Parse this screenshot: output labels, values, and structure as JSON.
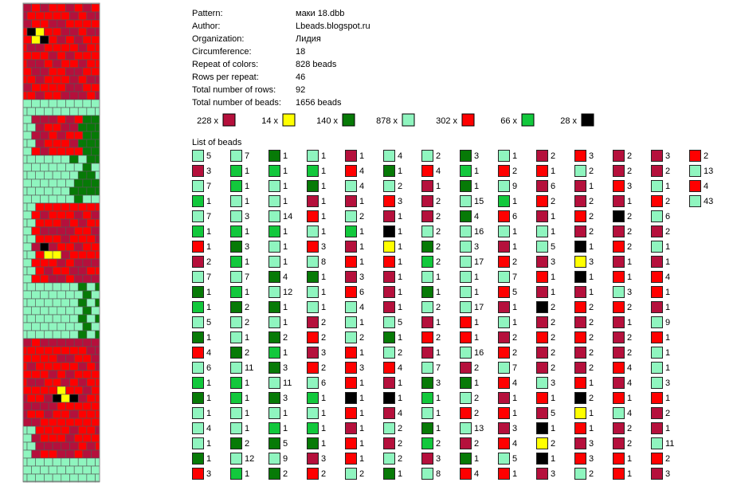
{
  "info": {
    "rows": [
      {
        "label": "Pattern:",
        "value": "маки 18.dbb"
      },
      {
        "label": "Author:",
        "value": "Lbeads.blogspot.ru"
      },
      {
        "label": "Organization:",
        "value": "Лидия"
      },
      {
        "label": "Circumference:",
        "value": "18"
      },
      {
        "label": "Repeat of colors:",
        "value": "828 beads"
      },
      {
        "label": "Rows per repeat:",
        "value": "46"
      },
      {
        "label": "Total number of rows:",
        "value": "92"
      },
      {
        "label": "Total number of beads:",
        "value": "1656 beads"
      }
    ]
  },
  "palette": {
    "D": "#b5103c",
    "R": "#ff0000",
    "G": "#077a07",
    "g": "#12c83c",
    "L": "#8ff5bf",
    "Y": "#ffff00",
    "K": "#000000"
  },
  "summary": [
    {
      "label": "228 x",
      "color": "D"
    },
    {
      "label": "14 x",
      "color": "Y"
    },
    {
      "label": "140 x",
      "color": "G"
    },
    {
      "label": "878 x",
      "color": "L"
    },
    {
      "label": "302 x",
      "color": "R"
    },
    {
      "label": "66 x",
      "color": "g"
    },
    {
      "label": "28 x",
      "color": "K"
    }
  ],
  "list": {
    "title": "List of beads",
    "columns": [
      {
        "colors": "LDLgLgRDLGgLGRLgGLLLGR",
        "counts": [
          5,
          3,
          7,
          1,
          7,
          1,
          1,
          2,
          7,
          1,
          1,
          5,
          1,
          4,
          6,
          1,
          1,
          1,
          4,
          1,
          1,
          3
        ]
      },
      {
        "colors": "LggLLgGgLgGLLGLggLLGLg",
        "counts": [
          7,
          1,
          1,
          1,
          3,
          1,
          3,
          1,
          7,
          1,
          2,
          2,
          1,
          2,
          11,
          1,
          1,
          1,
          1,
          2,
          12,
          1
        ]
      },
      {
        "colors": "GgLLLgLLGLGLGgGLGLgGLG",
        "counts": [
          1,
          1,
          1,
          1,
          14,
          1,
          1,
          1,
          4,
          12,
          1,
          1,
          2,
          1,
          3,
          11,
          3,
          1,
          1,
          5,
          9,
          2
        ]
      },
      {
        "colors": "LgGDRLRLGLLDRDRLgLgGDR",
        "counts": [
          1,
          1,
          1,
          1,
          1,
          1,
          3,
          8,
          1,
          1,
          1,
          2,
          2,
          3,
          2,
          6,
          1,
          1,
          1,
          1,
          3,
          2
        ]
      },
      {
        "colors": "DRLDLgDRDRLLLRRRKRDRRL",
        "counts": [
          1,
          4,
          4,
          1,
          2,
          1,
          1,
          1,
          3,
          6,
          4,
          1,
          2,
          1,
          3,
          1,
          1,
          1,
          1,
          1,
          1,
          2
        ]
      },
      {
        "colors": "LGLRDKYRDDDLGLRDKDLDLG",
        "counts": [
          4,
          1,
          2,
          3,
          1,
          1,
          1,
          1,
          1,
          1,
          1,
          5,
          1,
          2,
          4,
          1,
          1,
          4,
          2,
          2,
          2,
          1
        ]
      },
      {
        "colors": "LRDDDLGgLGLDRDLGgLGgDL",
        "counts": [
          2,
          4,
          1,
          2,
          2,
          2,
          2,
          2,
          1,
          1,
          2,
          1,
          2,
          1,
          7,
          3,
          1,
          1,
          1,
          2,
          3,
          8
        ]
      },
      {
        "colors": "GgGLGLLLLLLRRLDGLRLDGR",
        "counts": [
          3,
          1,
          1,
          15,
          4,
          16,
          3,
          17,
          1,
          1,
          17,
          1,
          1,
          16,
          2,
          1,
          2,
          2,
          13,
          2,
          1,
          4
        ]
      },
      {
        "colors": "LRLgRLDRLRDLDRLRDRDRLR",
        "counts": [
          1,
          2,
          9,
          1,
          6,
          1,
          1,
          2,
          7,
          5,
          1,
          1,
          2,
          2,
          7,
          4,
          1,
          1,
          3,
          4,
          5,
          1
        ]
      },
      {
        "colors": "DRDRDLLDRDKDRDDLRDKYKD",
        "counts": [
          2,
          1,
          6,
          2,
          1,
          1,
          5,
          3,
          1,
          1,
          2,
          2,
          2,
          2,
          2,
          3,
          1,
          5,
          1,
          2,
          1,
          3
        ]
      },
      {
        "colors": "RLDDRDKYKDRDRDDRKYRDRL",
        "counts": [
          3,
          2,
          1,
          2,
          2,
          2,
          1,
          3,
          1,
          1,
          2,
          2,
          2,
          2,
          2,
          1,
          2,
          1,
          1,
          3,
          3,
          2
        ]
      },
      {
        "colors": "DDRDKDRDRLRDDDRDRLDDRR",
        "counts": [
          2,
          2,
          3,
          1,
          2,
          2,
          2,
          1,
          1,
          3,
          2,
          1,
          2,
          2,
          4,
          4,
          1,
          4,
          2,
          2,
          1,
          1
        ]
      },
      {
        "colors": "DDLRLDLDRRDLRLLLRDDLRD",
        "counts": [
          3,
          2,
          1,
          2,
          6,
          2,
          1,
          1,
          4,
          1,
          1,
          9,
          1,
          1,
          1,
          3,
          1,
          2,
          1,
          11,
          2,
          3
        ]
      },
      {
        "colors": "RLRL",
        "counts": [
          2,
          13,
          4,
          43
        ]
      }
    ]
  }
}
